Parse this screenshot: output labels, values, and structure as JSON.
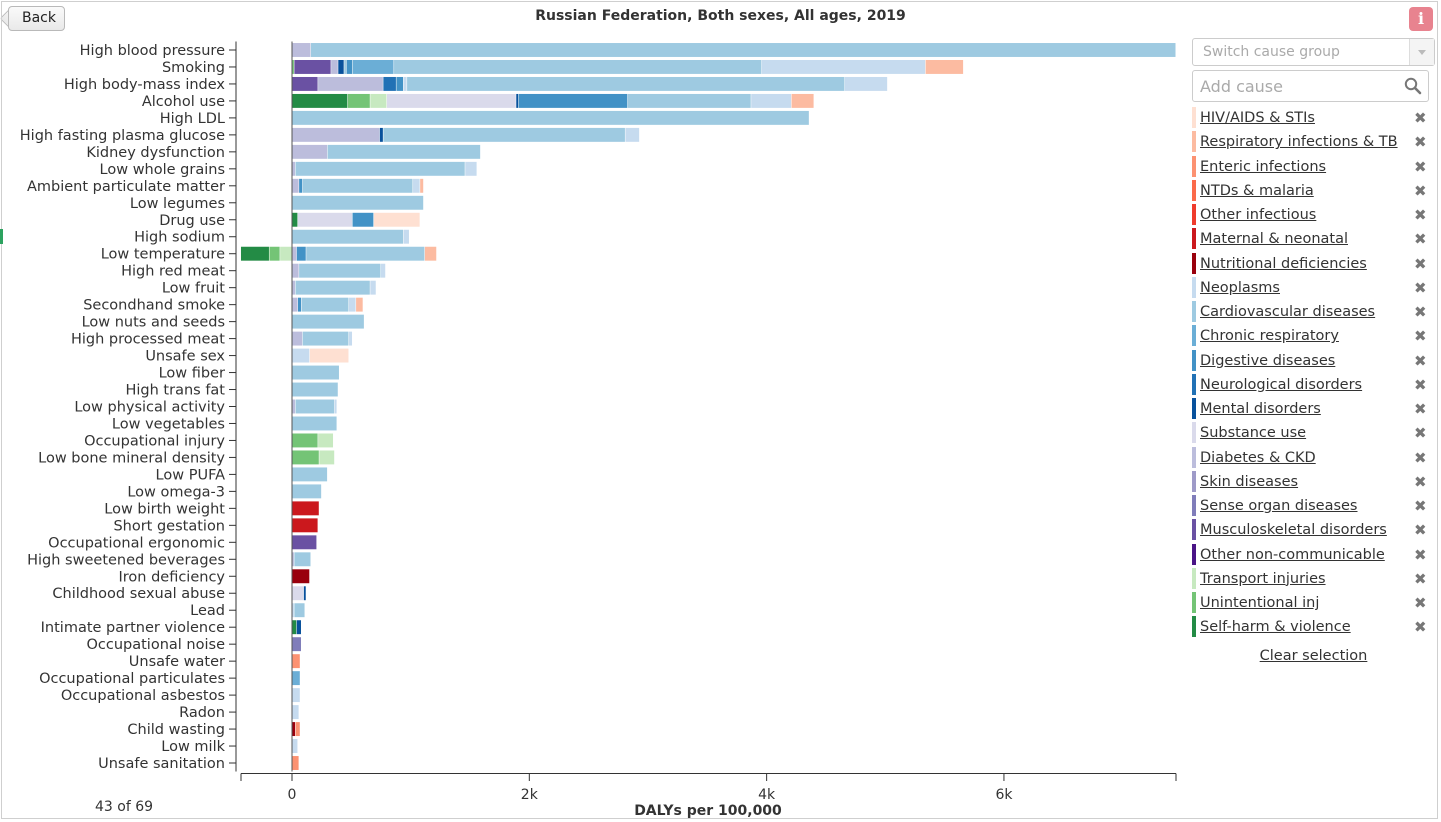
{
  "header": {
    "back_label": "Back",
    "title": "Russian Federation, Both sexes, All ages, 2019",
    "info_label": "i"
  },
  "controls": {
    "switch_placeholder": "Switch cause group",
    "add_placeholder": "Add cause"
  },
  "footer": {
    "count": "43 of 69"
  },
  "clear_label": "Clear selection",
  "remove_glyph": "✖",
  "causes": [
    {
      "name": "HIV/AIDS & STIs",
      "color": "#fee0d2"
    },
    {
      "name": "Respiratory infections & TB",
      "color": "#fcbba1"
    },
    {
      "name": "Enteric infections",
      "color": "#fc9272"
    },
    {
      "name": "NTDs & malaria",
      "color": "#fb6a4a"
    },
    {
      "name": "Other infectious",
      "color": "#ef3b2c"
    },
    {
      "name": "Maternal & neonatal",
      "color": "#cb181d"
    },
    {
      "name": "Nutritional deficiencies",
      "color": "#99000d"
    },
    {
      "name": "Neoplasms",
      "color": "#c6dbef"
    },
    {
      "name": "Cardiovascular diseases",
      "color": "#9ecae1"
    },
    {
      "name": "Chronic respiratory",
      "color": "#6baed6"
    },
    {
      "name": "Digestive diseases",
      "color": "#4292c6"
    },
    {
      "name": "Neurological disorders",
      "color": "#2171b5"
    },
    {
      "name": "Mental disorders",
      "color": "#08519c"
    },
    {
      "name": "Substance use",
      "color": "#dadaeb"
    },
    {
      "name": "Diabetes & CKD",
      "color": "#bcbddc"
    },
    {
      "name": "Skin diseases",
      "color": "#9e9ac8"
    },
    {
      "name": "Sense organ diseases",
      "color": "#807dba"
    },
    {
      "name": "Musculoskeletal disorders",
      "color": "#6a51a3"
    },
    {
      "name": "Other non-communicable",
      "color": "#4a1486"
    },
    {
      "name": "Transport injuries",
      "color": "#c7e9c0"
    },
    {
      "name": "Unintentional inj",
      "color": "#74c476"
    },
    {
      "name": "Self-harm & violence",
      "color": "#238b45"
    }
  ],
  "chart_data": {
    "type": "bar",
    "orientation": "horizontal",
    "stacked": true,
    "xlabel": "DALYs per 100,000",
    "xlim": [
      -430,
      7450
    ],
    "x_ticks": [
      0,
      2000,
      4000,
      6000
    ],
    "x_tick_labels": [
      "0",
      "2k",
      "4k",
      "6k"
    ],
    "categories": [
      "High blood pressure",
      "Smoking",
      "High body-mass index",
      "Alcohol use",
      "High LDL",
      "High fasting plasma glucose",
      "Kidney dysfunction",
      "Low whole grains",
      "Ambient particulate matter",
      "Low legumes",
      "Drug use",
      "High sodium",
      "Low temperature",
      "High red meat",
      "Low fruit",
      "Secondhand smoke",
      "Low nuts and seeds",
      "High processed meat",
      "Unsafe sex",
      "Low fiber",
      "High trans fat",
      "Low physical activity",
      "Low vegetables",
      "Occupational injury",
      "Low bone mineral density",
      "Low PUFA",
      "Low omega-3",
      "Low birth weight",
      "Short gestation",
      "Occupational ergonomic",
      "High sweetened beverages",
      "Iron deficiency",
      "Childhood sexual abuse",
      "Lead",
      "Intimate partner violence",
      "Occupational noise",
      "Unsafe water",
      "Occupational particulates",
      "Occupational asbestos",
      "Radon",
      "Child wasting",
      "Low milk",
      "Unsafe sanitation"
    ],
    "bars": [
      [
        [
          "Diabetes & CKD",
          160
        ],
        [
          "Cardiovascular diseases",
          7290
        ]
      ],
      [
        [
          "Unintentional inj",
          20
        ],
        [
          "Musculoskeletal disorders",
          310
        ],
        [
          "Diabetes & CKD",
          60
        ],
        [
          "Mental disorders",
          50
        ],
        [
          "Cardiovascular diseases",
          20
        ],
        [
          "Digestive diseases",
          50
        ],
        [
          "Chronic respiratory",
          350
        ],
        [
          "Cardiovascular diseases",
          3100
        ],
        [
          "Neoplasms",
          1380
        ],
        [
          "Respiratory infections & TB",
          320
        ]
      ],
      [
        [
          "Musculoskeletal disorders",
          220
        ],
        [
          "Diabetes & CKD",
          550
        ],
        [
          "Neurological disorders",
          110
        ],
        [
          "Digestive diseases",
          60
        ],
        [
          "Neoplasms",
          30
        ],
        [
          "Cardiovascular diseases",
          3690
        ],
        [
          "Neoplasms",
          360
        ]
      ],
      [
        [
          "Self-harm & violence",
          470
        ],
        [
          "Unintentional inj",
          190
        ],
        [
          "Transport injuries",
          140
        ],
        [
          "Substance use",
          1090
        ],
        [
          "Mental disorders",
          20
        ],
        [
          "Digestive diseases",
          920
        ],
        [
          "Cardiovascular diseases",
          1040
        ],
        [
          "Neoplasms",
          340
        ],
        [
          "Respiratory infections & TB",
          190
        ]
      ],
      [
        [
          "Cardiovascular diseases",
          4360
        ]
      ],
      [
        [
          "Diabetes & CKD",
          740
        ],
        [
          "Mental disorders",
          30
        ],
        [
          "Cardiovascular diseases",
          2040
        ],
        [
          "Neoplasms",
          120
        ]
      ],
      [
        [
          "Diabetes & CKD",
          300
        ],
        [
          "Cardiovascular diseases",
          1290
        ]
      ],
      [
        [
          "Diabetes & CKD",
          30
        ],
        [
          "Cardiovascular diseases",
          1430
        ],
        [
          "Neoplasms",
          100
        ]
      ],
      [
        [
          "Diabetes & CKD",
          60
        ],
        [
          "Digestive diseases",
          30
        ],
        [
          "Cardiovascular diseases",
          930
        ],
        [
          "Neoplasms",
          60
        ],
        [
          "Respiratory infections & TB",
          30
        ]
      ],
      [
        [
          "Cardiovascular diseases",
          1110
        ]
      ],
      [
        [
          "Self-harm & violence",
          50
        ],
        [
          "Substance use",
          460
        ],
        [
          "Digestive diseases",
          180
        ],
        [
          "HIV/AIDS & STIs",
          390
        ]
      ],
      [
        [
          "Cardiovascular diseases",
          940
        ],
        [
          "Neoplasms",
          50
        ]
      ],
      [
        [
          "Transport injuries",
          -100
        ],
        [
          "Unintentional inj",
          -90
        ],
        [
          "Self-harm & violence",
          -240
        ],
        [
          "Diabetes & CKD",
          40
        ],
        [
          "Digestive diseases",
          80
        ],
        [
          "Cardiovascular diseases",
          1000
        ],
        [
          "Respiratory infections & TB",
          100
        ]
      ],
      [
        [
          "Diabetes & CKD",
          60
        ],
        [
          "Cardiovascular diseases",
          690
        ],
        [
          "Neoplasms",
          40
        ]
      ],
      [
        [
          "Diabetes & CKD",
          30
        ],
        [
          "Cardiovascular diseases",
          630
        ],
        [
          "Neoplasms",
          50
        ]
      ],
      [
        [
          "Diabetes & CKD",
          50
        ],
        [
          "Digestive diseases",
          30
        ],
        [
          "Cardiovascular diseases",
          400
        ],
        [
          "Neoplasms",
          60
        ],
        [
          "Respiratory infections & TB",
          60
        ]
      ],
      [
        [
          "Cardiovascular diseases",
          610
        ]
      ],
      [
        [
          "Diabetes & CKD",
          90
        ],
        [
          "Cardiovascular diseases",
          390
        ],
        [
          "Neoplasms",
          30
        ]
      ],
      [
        [
          "Neoplasms",
          150
        ],
        [
          "HIV/AIDS & STIs",
          330
        ]
      ],
      [
        [
          "Cardiovascular diseases",
          400
        ]
      ],
      [
        [
          "Cardiovascular diseases",
          390
        ]
      ],
      [
        [
          "Diabetes & CKD",
          30
        ],
        [
          "Cardiovascular diseases",
          330
        ],
        [
          "Neoplasms",
          20
        ]
      ],
      [
        [
          "Cardiovascular diseases",
          380
        ]
      ],
      [
        [
          "Unintentional inj",
          220
        ],
        [
          "Transport injuries",
          130
        ]
      ],
      [
        [
          "Unintentional inj",
          230
        ],
        [
          "Transport injuries",
          130
        ]
      ],
      [
        [
          "Cardiovascular diseases",
          300
        ]
      ],
      [
        [
          "Cardiovascular diseases",
          250
        ]
      ],
      [
        [
          "Maternal & neonatal",
          230
        ]
      ],
      [
        [
          "Maternal & neonatal",
          220
        ]
      ],
      [
        [
          "Musculoskeletal disorders",
          210
        ]
      ],
      [
        [
          "Diabetes & CKD",
          20
        ],
        [
          "Cardiovascular diseases",
          140
        ]
      ],
      [
        [
          "Nutritional deficiencies",
          150
        ]
      ],
      [
        [
          "Substance use",
          100
        ],
        [
          "Mental disorders",
          20
        ]
      ],
      [
        [
          "Neoplasms",
          20
        ],
        [
          "Cardiovascular diseases",
          90
        ]
      ],
      [
        [
          "Self-harm & violence",
          40
        ],
        [
          "Mental disorders",
          40
        ]
      ],
      [
        [
          "Sense organ diseases",
          80
        ]
      ],
      [
        [
          "Enteric infections",
          70
        ]
      ],
      [
        [
          "Chronic respiratory",
          70
        ]
      ],
      [
        [
          "Neoplasms",
          70
        ]
      ],
      [
        [
          "Neoplasms",
          60
        ]
      ],
      [
        [
          "Nutritional deficiencies",
          30
        ],
        [
          "Enteric infections",
          40
        ]
      ],
      [
        [
          "Neoplasms",
          50
        ]
      ],
      [
        [
          "Enteric infections",
          60
        ]
      ]
    ]
  }
}
